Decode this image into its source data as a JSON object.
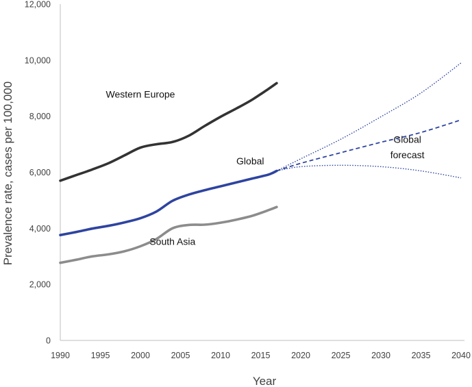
{
  "chart_data": {
    "type": "line",
    "xlabel": "Year",
    "ylabel": "Prevalence rate, cases per 100,000",
    "xlim": [
      1990,
      2040
    ],
    "ylim": [
      0,
      12000
    ],
    "x_ticks": [
      1990,
      1995,
      2000,
      2005,
      2010,
      2015,
      2020,
      2025,
      2030,
      2035,
      2040
    ],
    "y_ticks": [
      0,
      2000,
      4000,
      6000,
      8000,
      10000,
      12000
    ],
    "y_tick_labels": [
      "0",
      "2,000",
      "4,000",
      "6,000",
      "8,000",
      "10,000",
      "12,000"
    ],
    "grid": false,
    "legend": "none",
    "series": [
      {
        "name": "Western Europe",
        "color": "#333333",
        "style": "solid",
        "x": [
          1990,
          1992,
          1994,
          1996,
          1998,
          2000,
          2002,
          2004,
          2006,
          2008,
          2010,
          2012,
          2014,
          2016,
          2017
        ],
        "values": [
          5700,
          5900,
          6100,
          6320,
          6600,
          6880,
          7000,
          7080,
          7300,
          7650,
          7980,
          8280,
          8600,
          8980,
          9180
        ]
      },
      {
        "name": "Global",
        "color": "#2e44a0",
        "style": "solid",
        "x": [
          1990,
          1992,
          1994,
          1996,
          1998,
          2000,
          2002,
          2004,
          2006,
          2008,
          2010,
          2012,
          2014,
          2016,
          2017
        ],
        "values": [
          3760,
          3870,
          3990,
          4090,
          4210,
          4360,
          4600,
          4980,
          5200,
          5360,
          5500,
          5640,
          5780,
          5920,
          6050
        ]
      },
      {
        "name": "South Asia",
        "color": "#8c8c8c",
        "style": "solid",
        "x": [
          1990,
          1992,
          1994,
          1996,
          1998,
          2000,
          2002,
          2004,
          2006,
          2008,
          2010,
          2012,
          2014,
          2016,
          2017
        ],
        "values": [
          2770,
          2880,
          3000,
          3070,
          3180,
          3360,
          3620,
          4000,
          4120,
          4130,
          4200,
          4310,
          4450,
          4650,
          4760
        ]
      },
      {
        "name": "Global forecast",
        "color": "#2e44a0",
        "style": "dashed",
        "x": [
          2017,
          2020,
          2025,
          2030,
          2035,
          2040
        ],
        "values": [
          6050,
          6320,
          6700,
          7070,
          7420,
          7870
        ]
      },
      {
        "name": "Global forecast upper",
        "color": "#2e44a0",
        "style": "dotted",
        "x": [
          2017,
          2020,
          2025,
          2030,
          2035,
          2040
        ],
        "values": [
          6050,
          6480,
          7180,
          7980,
          8830,
          9900
        ]
      },
      {
        "name": "Global forecast lower",
        "color": "#2e44a0",
        "style": "dotted",
        "x": [
          2017,
          2020,
          2025,
          2030,
          2035,
          2040
        ],
        "values": [
          6050,
          6200,
          6250,
          6200,
          6050,
          5800
        ]
      }
    ],
    "annotations": [
      {
        "key": "western_europe",
        "text": "Western Europe",
        "x": 2000,
        "y": 8660
      },
      {
        "key": "global",
        "text": "Global",
        "x": 2013.7,
        "y": 6280
      },
      {
        "key": "south_asia",
        "text": "South Asia",
        "x": 2004,
        "y": 3410
      },
      {
        "key": "forecast_1",
        "text": "Global",
        "x": 2033.3,
        "y": 7050
      },
      {
        "key": "forecast_2",
        "text": "forecast",
        "x": 2033.3,
        "y": 6500
      }
    ]
  }
}
